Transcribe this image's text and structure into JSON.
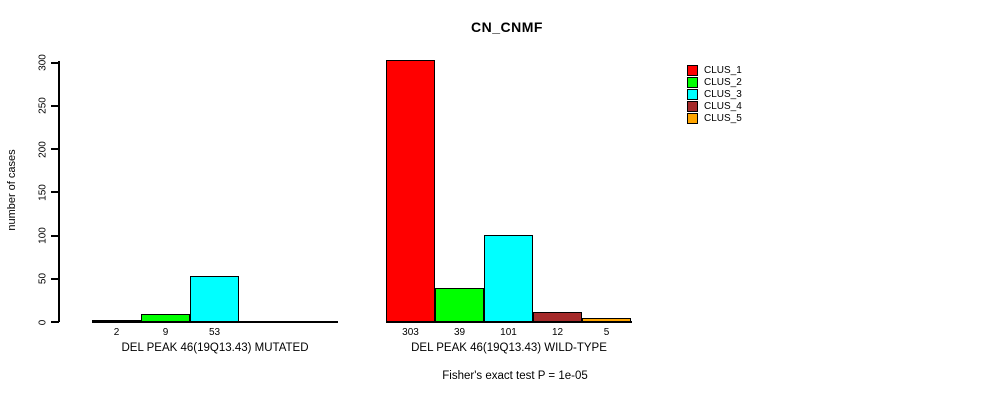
{
  "chart_data": {
    "type": "bar",
    "title": "CN_CNMF",
    "ylabel": "number of cases",
    "ylim": [
      0,
      300
    ],
    "yticks": [
      0,
      50,
      100,
      150,
      200,
      250,
      300
    ],
    "grid": false,
    "legend_position": "right",
    "legend": [
      {
        "label": "CLUS_1",
        "color": "#FF0000"
      },
      {
        "label": "CLUS_2",
        "color": "#00FF00"
      },
      {
        "label": "CLUS_3",
        "color": "#00FFFF"
      },
      {
        "label": "CLUS_4",
        "color": "#A52A2A"
      },
      {
        "label": "CLUS_5",
        "color": "#FFA500"
      }
    ],
    "groups": [
      {
        "label": "DEL PEAK 46(19Q13.43) MUTATED",
        "bars": [
          {
            "cluster": "CLUS_1",
            "value": 2,
            "color": "#FF0000"
          },
          {
            "cluster": "CLUS_2",
            "value": 9,
            "color": "#00FF00"
          },
          {
            "cluster": "CLUS_3",
            "value": 53,
            "color": "#00FFFF"
          }
        ]
      },
      {
        "label": "DEL PEAK 46(19Q13.43) WILD-TYPE",
        "bars": [
          {
            "cluster": "CLUS_1",
            "value": 303,
            "color": "#FF0000"
          },
          {
            "cluster": "CLUS_2",
            "value": 39,
            "color": "#00FF00"
          },
          {
            "cluster": "CLUS_3",
            "value": 101,
            "color": "#00FFFF"
          },
          {
            "cluster": "CLUS_4",
            "value": 12,
            "color": "#A52A2A"
          },
          {
            "cluster": "CLUS_5",
            "value": 5,
            "color": "#FFA500"
          }
        ]
      }
    ],
    "annotation": "Fisher's exact test P = 1e-05"
  }
}
